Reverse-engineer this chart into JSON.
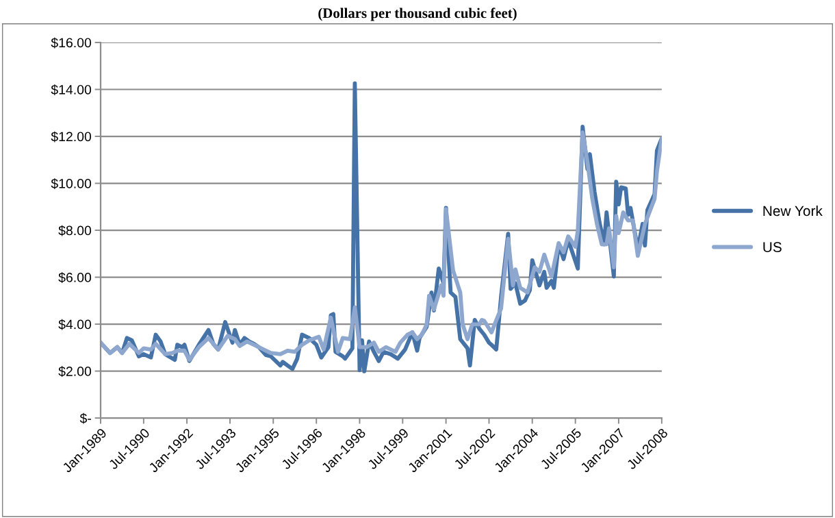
{
  "chart_data": {
    "type": "line",
    "title": "(Dollars per thousand cubic feet)",
    "series": [
      {
        "name": "New York",
        "color": "#4572a7",
        "x": [
          "1989-01",
          "1989-05",
          "1989-08",
          "1989-10",
          "1989-12",
          "1990-02",
          "1990-05",
          "1990-07",
          "1990-10",
          "1990-12",
          "1991-02",
          "1991-04",
          "1991-08",
          "1991-09",
          "1991-11",
          "1991-12",
          "1992-02",
          "1992-06",
          "1992-10",
          "1992-12",
          "1993-02",
          "1993-05",
          "1993-08",
          "1993-09",
          "1993-11",
          "1994-01",
          "1994-03",
          "1994-05",
          "1994-07",
          "1994-10",
          "1994-12",
          "1995-04",
          "1995-05",
          "1995-07",
          "1995-09",
          "1995-11",
          "1996-01",
          "1996-04",
          "1996-07",
          "1996-09",
          "1996-12",
          "1997-01",
          "1997-02",
          "1997-03",
          "1997-06",
          "1997-07",
          "1997-10",
          "1997-11",
          "1998-01",
          "1998-02",
          "1998-03",
          "1998-05",
          "1998-07",
          "1998-09",
          "1998-11",
          "1999-02",
          "1999-05",
          "1999-08",
          "1999-11",
          "2000-01",
          "2000-02",
          "2000-05",
          "2000-07",
          "2000-08",
          "2000-10",
          "2000-12",
          "2001-01",
          "2001-03",
          "2001-05",
          "2001-07",
          "2001-10",
          "2001-11",
          "2002-01",
          "2002-03",
          "2002-05",
          "2002-07",
          "2002-08",
          "2002-10",
          "2002-12",
          "2003-03",
          "2003-04",
          "2003-06",
          "2003-08",
          "2003-10",
          "2003-12",
          "2004-01",
          "2004-04",
          "2004-06",
          "2004-07",
          "2004-09",
          "2004-10",
          "2004-12",
          "2005-02",
          "2005-04",
          "2005-08",
          "2005-10",
          "2005-12",
          "2006-01",
          "2006-03",
          "2006-05",
          "2006-07",
          "2006-08",
          "2006-11",
          "2006-12",
          "2007-01",
          "2007-02",
          "2007-04",
          "2007-05",
          "2007-06",
          "2007-09",
          "2007-11",
          "2007-12",
          "2008-01",
          "2008-04",
          "2008-05",
          "2008-07"
        ],
        "values": [
          3.21,
          2.77,
          3.02,
          2.77,
          3.41,
          3.31,
          2.63,
          2.72,
          2.58,
          3.55,
          3.26,
          2.72,
          2.48,
          3.12,
          3.02,
          3.12,
          2.43,
          3.12,
          3.75,
          3.16,
          2.92,
          4.09,
          3.21,
          3.75,
          3.12,
          3.41,
          3.26,
          3.16,
          3.02,
          2.68,
          2.63,
          2.24,
          2.39,
          2.24,
          2.09,
          2.53,
          3.55,
          3.41,
          3.12,
          2.58,
          3.02,
          4.38,
          4.43,
          2.82,
          2.63,
          2.53,
          2.97,
          14.26,
          2.04,
          3.31,
          1.99,
          3.26,
          2.82,
          2.43,
          2.82,
          2.72,
          2.53,
          2.92,
          3.65,
          2.87,
          3.41,
          3.89,
          5.35,
          4.58,
          6.37,
          5.74,
          8.95,
          5.35,
          5.16,
          3.36,
          2.97,
          2.24,
          4.18,
          3.8,
          3.55,
          3.21,
          3.12,
          2.92,
          5.16,
          7.85,
          5.5,
          5.74,
          4.87,
          5.01,
          5.45,
          6.72,
          5.65,
          6.23,
          5.55,
          5.84,
          5.55,
          7.4,
          6.77,
          7.59,
          6.37,
          12.41,
          10.61,
          11.24,
          9.64,
          8.37,
          7.4,
          8.76,
          6.03,
          10.07,
          9.1,
          9.83,
          9.78,
          8.66,
          8.95,
          7.2,
          8.27,
          7.35,
          8.86,
          9.54,
          11.39,
          11.92
        ]
      },
      {
        "name": "US",
        "color": "#8ea7cf",
        "x": [
          "1989-01",
          "1989-05",
          "1989-08",
          "1989-10",
          "1990-01",
          "1990-05",
          "1990-07",
          "1990-10",
          "1990-12",
          "1991-04",
          "1991-07",
          "1991-09",
          "1991-12",
          "1992-02",
          "1992-06",
          "1992-10",
          "1993-02",
          "1993-06",
          "1993-09",
          "1993-11",
          "1994-02",
          "1994-06",
          "1994-10",
          "1994-12",
          "1995-04",
          "1995-07",
          "1995-10",
          "1996-01",
          "1996-04",
          "1996-08",
          "1996-10",
          "1997-01",
          "1997-04",
          "1997-06",
          "1997-09",
          "1997-11",
          "1998-01",
          "1998-04",
          "1998-07",
          "1998-09",
          "1998-12",
          "1999-04",
          "1999-06",
          "1999-09",
          "1999-11",
          "2000-01",
          "2000-03",
          "2000-05",
          "2000-06",
          "2000-08",
          "2000-11",
          "2000-12",
          "2001-01",
          "2001-04",
          "2001-07",
          "2001-08",
          "2001-10",
          "2001-12",
          "2002-03",
          "2002-04",
          "2002-05",
          "2002-08",
          "2002-12",
          "2003-03",
          "2003-05",
          "2003-06",
          "2003-08",
          "2003-11",
          "2004-02",
          "2004-04",
          "2004-06",
          "2004-09",
          "2004-12",
          "2005-02",
          "2005-04",
          "2005-07",
          "2005-08",
          "2005-10",
          "2005-12",
          "2006-02",
          "2006-04",
          "2006-06",
          "2006-08",
          "2006-09",
          "2006-11",
          "2006-12",
          "2007-01",
          "2007-03",
          "2007-05",
          "2007-07",
          "2007-09",
          "2007-12",
          "2008-04",
          "2008-05",
          "2008-07"
        ],
        "values": [
          3.21,
          2.77,
          3.02,
          2.77,
          3.16,
          2.77,
          2.97,
          2.92,
          3.16,
          2.72,
          2.77,
          2.87,
          2.87,
          2.48,
          3.02,
          3.41,
          2.92,
          3.5,
          3.36,
          3.07,
          3.26,
          3.07,
          2.87,
          2.77,
          2.72,
          2.87,
          2.82,
          3.12,
          3.31,
          3.46,
          2.92,
          4.28,
          2.82,
          3.41,
          3.36,
          4.72,
          3.02,
          3.02,
          3.21,
          2.82,
          3.02,
          2.82,
          3.21,
          3.55,
          3.65,
          3.36,
          3.55,
          3.99,
          5.21,
          4.63,
          5.65,
          5.21,
          8.9,
          6.28,
          5.35,
          3.99,
          3.36,
          3.99,
          3.99,
          4.18,
          4.14,
          3.65,
          4.67,
          7.64,
          5.65,
          6.33,
          5.55,
          5.35,
          6.42,
          6.23,
          6.96,
          6.03,
          7.45,
          7.06,
          7.74,
          7.3,
          7.98,
          12.17,
          10.9,
          9.34,
          8.27,
          7.4,
          7.4,
          8.08,
          6.42,
          8.61,
          7.88,
          8.76,
          8.42,
          8.42,
          6.91,
          8.27,
          9.34,
          10.51,
          11.92
        ]
      }
    ],
    "xlim": [
      "1989-01",
      "2008-07"
    ],
    "xticks": [
      {
        "value": "1989-01",
        "label": "Jan-1989"
      },
      {
        "value": "1990-07",
        "label": "Jul-1990"
      },
      {
        "value": "1992-01",
        "label": "Jan-1992"
      },
      {
        "value": "1993-07",
        "label": "Jul-1993"
      },
      {
        "value": "1995-01",
        "label": "Jan-1995"
      },
      {
        "value": "1996-07",
        "label": "Jul-1996"
      },
      {
        "value": "1998-01",
        "label": "Jan-1998"
      },
      {
        "value": "1999-07",
        "label": "Jul-1999"
      },
      {
        "value": "2001-01",
        "label": "Jan-2001"
      },
      {
        "value": "2002-07",
        "label": "Jul-2002"
      },
      {
        "value": "2004-01",
        "label": "Jan-2004"
      },
      {
        "value": "2005-07",
        "label": "Jul-2005"
      },
      {
        "value": "2007-01",
        "label": "Jan-2007"
      },
      {
        "value": "2008-07",
        "label": "Jul-2008"
      }
    ],
    "ylim": [
      0,
      16
    ],
    "yticks": [
      {
        "value": 0,
        "label": "$-"
      },
      {
        "value": 2,
        "label": "$2.00"
      },
      {
        "value": 4,
        "label": "$4.00"
      },
      {
        "value": 6,
        "label": "$6.00"
      },
      {
        "value": 8,
        "label": "$8.00"
      },
      {
        "value": 10,
        "label": "$10.00"
      },
      {
        "value": 12,
        "label": "$12.00"
      },
      {
        "value": 14,
        "label": "$14.00"
      },
      {
        "value": 16,
        "label": "$16.00"
      }
    ],
    "grid": "y",
    "legend": "right",
    "line_style": "solid",
    "marker": "none"
  }
}
